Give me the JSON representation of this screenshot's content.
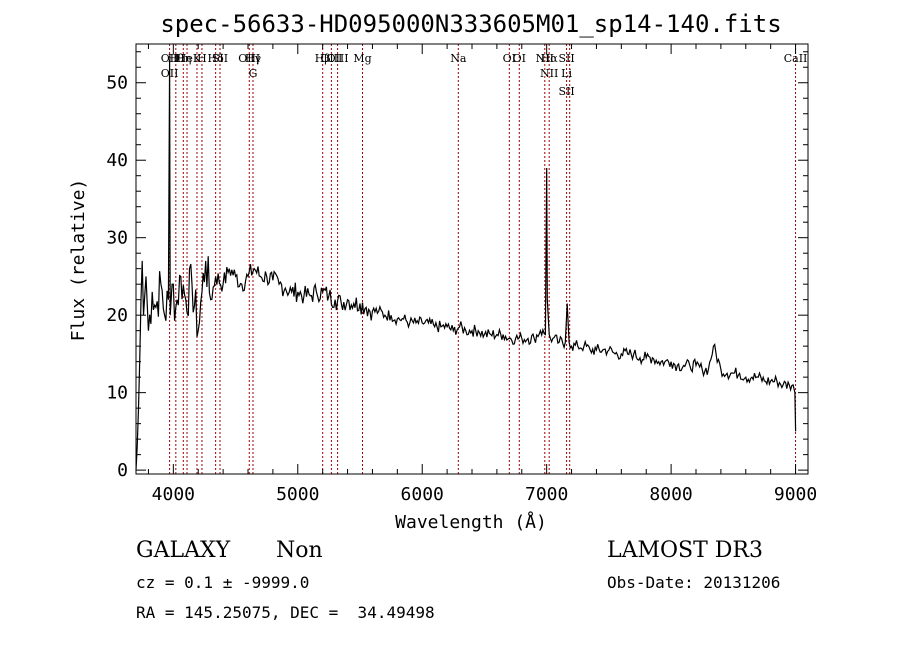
{
  "chart_data": {
    "type": "line",
    "title": "spec-56633-HD095000N333605M01_sp14-140.fits",
    "xlabel": "Wavelength (Å)",
    "ylabel": "Flux (relative)",
    "xlim": [
      3700,
      9100
    ],
    "ylim": [
      -0.5,
      55
    ],
    "x_ticks": [
      "4000",
      "5000",
      "6000",
      "7000",
      "8000",
      "9000"
    ],
    "y_ticks": [
      "0",
      "10",
      "20",
      "30",
      "40",
      "50"
    ],
    "grid": false,
    "series": [
      {
        "x": [
          3700,
          3710,
          3720,
          3730,
          3740,
          3750,
          3760,
          3780,
          3800,
          3830,
          3860,
          3900,
          3930,
          3960,
          3970,
          3975,
          3990,
          4020,
          4060,
          4100,
          4150,
          4200,
          4230,
          4260,
          4300,
          4340,
          4400,
          4450,
          4500,
          4550,
          4600,
          4650,
          4700,
          4750,
          4800,
          4850,
          4900,
          4950,
          5000,
          5050,
          5100,
          5150,
          5200,
          5250,
          5300,
          5350,
          5400,
          5450,
          5500,
          5550,
          5600,
          5650,
          5700,
          5750,
          5800,
          5850,
          5900,
          5950,
          6000,
          6050,
          6100,
          6150,
          6200,
          6250,
          6300,
          6350,
          6400,
          6450,
          6500,
          6550,
          6600,
          6650,
          6700,
          6750,
          6800,
          6850,
          6900,
          6950,
          6990,
          7000,
          7005,
          7020,
          7030,
          7050,
          7100,
          7150,
          7165,
          7180,
          7200,
          7250,
          7300,
          7350,
          7400,
          7450,
          7500,
          7550,
          7600,
          7650,
          7700,
          7750,
          7800,
          7850,
          7900,
          7950,
          8000,
          8050,
          8100,
          8150,
          8200,
          8250,
          8300,
          8340,
          8400,
          8450,
          8500,
          8550,
          8600,
          8650,
          8700,
          8750,
          8800,
          8850,
          8900,
          8950,
          8980,
          8995,
          9000
        ],
        "y": [
          0,
          3,
          8,
          14,
          22,
          27,
          20,
          25,
          18,
          23,
          21,
          24,
          20,
          22,
          53,
          20,
          24,
          21,
          25,
          22,
          24,
          18,
          23,
          27,
          22,
          25,
          24,
          26,
          25,
          24,
          25,
          26,
          25,
          25,
          24.5,
          24,
          23.5,
          23,
          23,
          22.5,
          22.5,
          23,
          23,
          22.5,
          22,
          21.5,
          22,
          21.5,
          21.5,
          21,
          20.5,
          20.5,
          20,
          20,
          19.5,
          19.5,
          19,
          19,
          19,
          19,
          18.5,
          18.5,
          18.5,
          18,
          18.5,
          18,
          18,
          18,
          17.5,
          17.5,
          17.5,
          17.5,
          17,
          17,
          17,
          17,
          17,
          18,
          17.5,
          39,
          22,
          17.5,
          17,
          17,
          16.5,
          16.5,
          21.5,
          16.5,
          16,
          16,
          16,
          15.5,
          15.5,
          15.5,
          15.5,
          15,
          15,
          15,
          15,
          14.5,
          14.5,
          14.5,
          14,
          14,
          14,
          13.5,
          13.5,
          13.5,
          13.5,
          13,
          13,
          16,
          13,
          12.5,
          12.5,
          12.5,
          12,
          12,
          12,
          11.5,
          11.5,
          11.5,
          11,
          11,
          11,
          10,
          5
        ]
      }
    ],
    "line_markers": [
      {
        "wavelength": 3970,
        "labels": [
          "OII",
          "OII"
        ]
      },
      {
        "wavelength": 4020,
        "labels": [
          "Hθ"
        ]
      },
      {
        "wavelength": 4080,
        "labels": [
          "Hη"
        ]
      },
      {
        "wavelength": 4110,
        "labels": [
          "HeI"
        ]
      },
      {
        "wavelength": 4190,
        "labels": [
          "K"
        ]
      },
      {
        "wavelength": 4230,
        "labels": [
          "H"
        ]
      },
      {
        "wavelength": 4340,
        "labels": [
          "Hδ"
        ]
      },
      {
        "wavelength": 4375,
        "labels": [
          "SII"
        ]
      },
      {
        "wavelength": 4610,
        "labels": [
          "OIII"
        ]
      },
      {
        "wavelength": 4640,
        "labels": [
          "Hγ",
          "G"
        ]
      },
      {
        "wavelength": 5200,
        "labels": [
          "Hβ"
        ]
      },
      {
        "wavelength": 5270,
        "labels": [
          "OIII"
        ]
      },
      {
        "wavelength": 5320,
        "labels": [
          "OIII"
        ]
      },
      {
        "wavelength": 5520,
        "labels": [
          "Mg"
        ]
      },
      {
        "wavelength": 6290,
        "labels": [
          "Na"
        ]
      },
      {
        "wavelength": 6700,
        "labels": [
          "OI"
        ]
      },
      {
        "wavelength": 6780,
        "labels": [
          "OI"
        ]
      },
      {
        "wavelength": 6985,
        "labels": [
          "NII"
        ]
      },
      {
        "wavelength": 7020,
        "labels": [
          "Hα",
          "NII"
        ]
      },
      {
        "wavelength": 7160,
        "labels": [
          "SII",
          "Li",
          "SII"
        ]
      },
      {
        "wavelength": 7185,
        "labels": []
      },
      {
        "wavelength": 9000,
        "labels": [
          "CaII"
        ]
      }
    ]
  },
  "info": {
    "object_type": "GALAXY",
    "subclass": "Non",
    "survey": "LAMOST DR3",
    "cz": "cz = 0.1 ± -9999.0",
    "obs_date": "Obs-Date: 20131206",
    "radec": "RA = 145.25075, DEC =  34.49498"
  }
}
